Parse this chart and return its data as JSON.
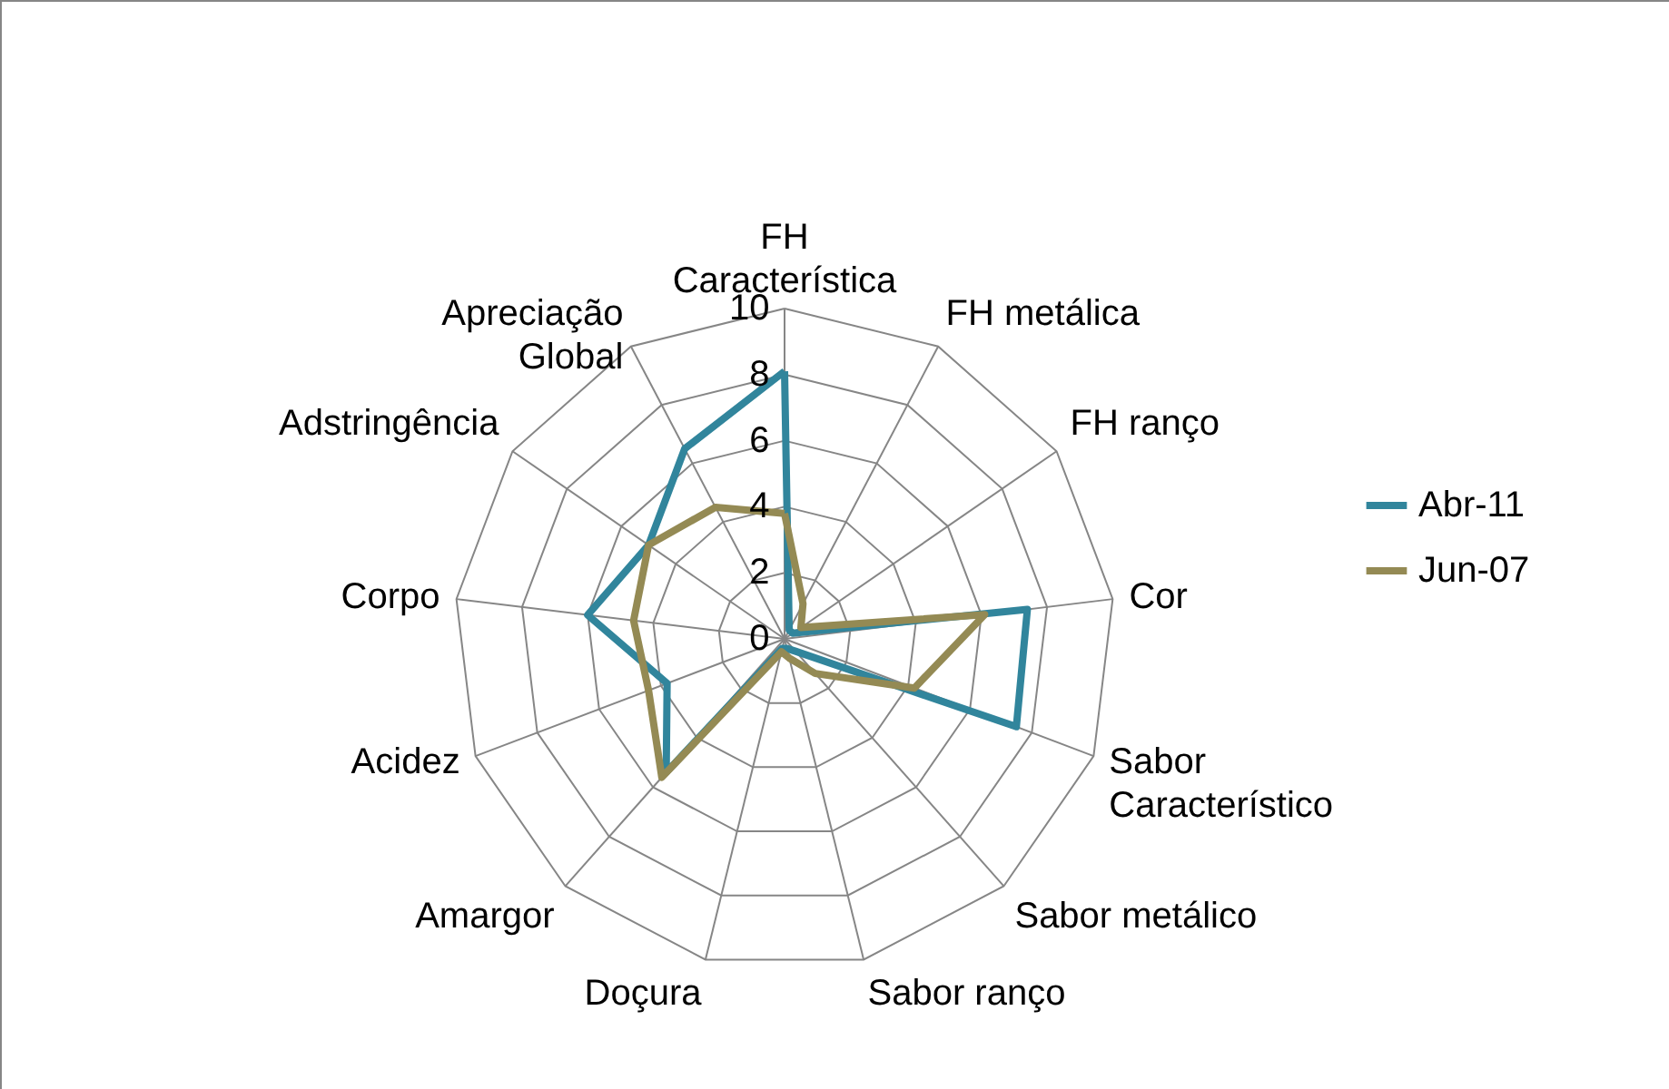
{
  "chart_data": {
    "type": "radar",
    "categories": [
      "FH Característica",
      "FH metálica",
      "FH ranço",
      "Cor",
      "Sabor Característico",
      "Sabor metálico",
      "Sabor ranço",
      "Doçura",
      "Amargor",
      "Acidez",
      "Corpo",
      "Adstringência",
      "Apreciação Global"
    ],
    "series": [
      {
        "name": "Abr-11",
        "color": "#31859c",
        "values": [
          8.1,
          0.3,
          0.3,
          7.4,
          7.5,
          0.5,
          0.3,
          0.3,
          5.4,
          3.8,
          6.0,
          5.0,
          6.5
        ]
      },
      {
        "name": "Jun-07",
        "color": "#948a54",
        "values": [
          3.8,
          1.2,
          0.6,
          6.1,
          4.2,
          1.4,
          0.6,
          0.4,
          5.6,
          4.4,
          4.6,
          5.0,
          4.5
        ]
      }
    ],
    "ylim": [
      0,
      10
    ],
    "yticks": [
      0,
      2,
      4,
      6,
      8,
      10
    ],
    "grid": true,
    "legend": "right"
  }
}
